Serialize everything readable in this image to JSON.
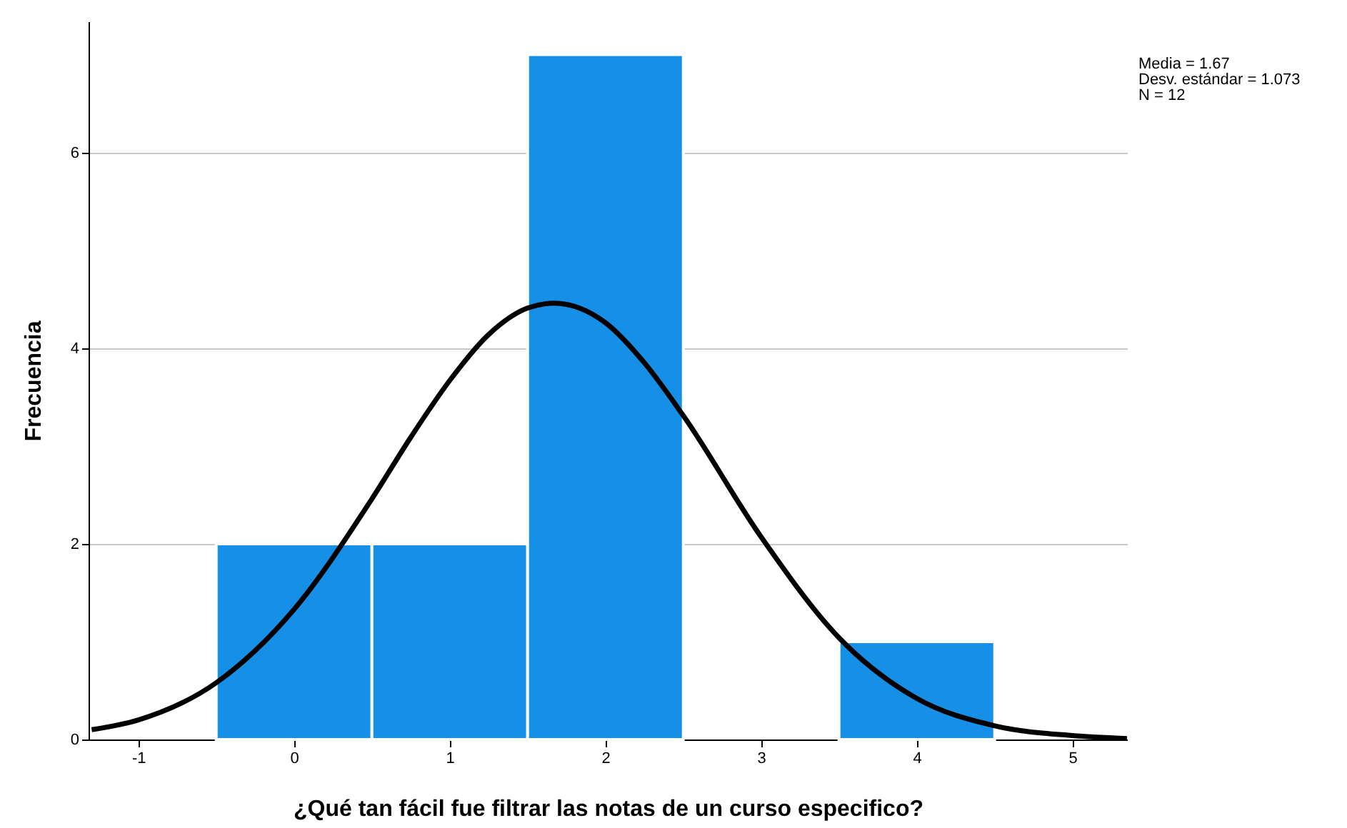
{
  "chart_data": {
    "type": "histogram",
    "xlabel": "¿Qué tan fácil fue filtrar las notas de un curso especifico?",
    "ylabel": "Frecuencia",
    "bins": [
      -0.5,
      0.5,
      1.5,
      2.5,
      3.5,
      4.5
    ],
    "values": [
      2,
      2,
      7,
      0,
      1
    ],
    "color": "#1590e6",
    "series": [
      {
        "type": "line",
        "color": "#000000",
        "x": [
          -1.3,
          -1,
          -0.5,
          0,
          0.5,
          0.75,
          1,
          1.25,
          1.5,
          1.67,
          2,
          2.25,
          2.5,
          3,
          3.5,
          4,
          4.5,
          5,
          5.35
        ],
        "values": [
          0.1,
          0.2,
          0.58,
          1.33,
          2.46,
          3.09,
          3.67,
          4.14,
          4.41,
          4.46,
          4.26,
          3.85,
          3.31,
          2.07,
          1.04,
          0.42,
          0.14,
          0.04,
          0.01
        ]
      }
    ],
    "xlim": [
      -1.32,
      5.35
    ],
    "xticks": [
      -1,
      0,
      1,
      2,
      3,
      4,
      5
    ],
    "ylim": [
      0,
      7.34
    ],
    "yticks": [
      0,
      2,
      4,
      6
    ],
    "grid": "y",
    "annotations": [
      "Media = 1.67",
      "Desv. estándar = 1.073",
      "N = 12"
    ]
  }
}
